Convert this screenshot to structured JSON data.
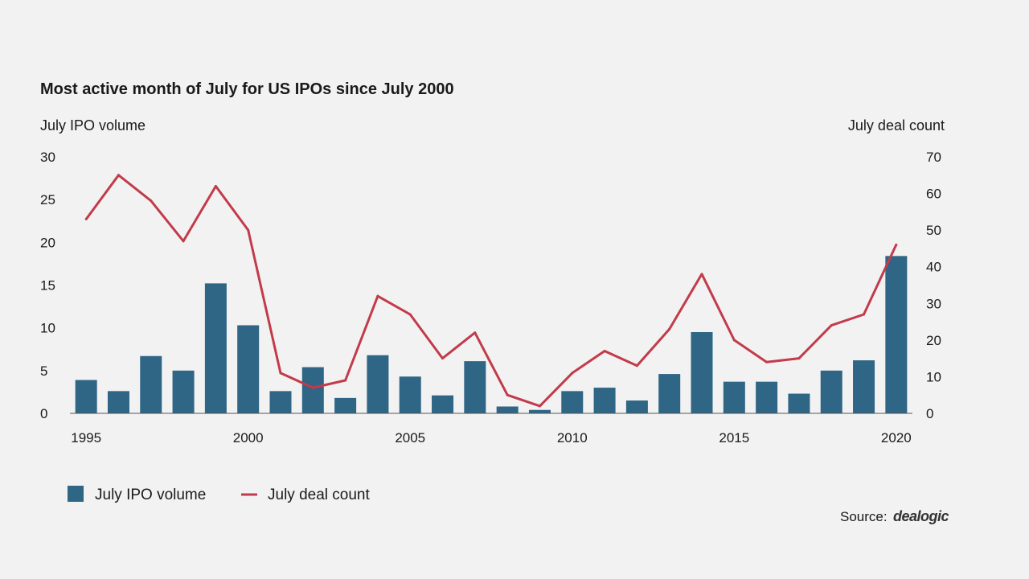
{
  "chart_data": {
    "type": "bar+line",
    "title": "Most active month of July for US IPOs since July 2000",
    "ylabel_left": "July IPO volume",
    "ylabel_right": "July deal count",
    "ylim_left": [
      0,
      30
    ],
    "yticks_left": [
      0,
      5,
      10,
      15,
      20,
      25,
      30
    ],
    "ylim_right": [
      0,
      70
    ],
    "yticks_right": [
      0,
      10,
      20,
      30,
      40,
      50,
      60,
      70
    ],
    "x": [
      1995,
      1996,
      1997,
      1998,
      1999,
      2000,
      2001,
      2002,
      2003,
      2004,
      2005,
      2006,
      2007,
      2008,
      2009,
      2010,
      2011,
      2012,
      2013,
      2014,
      2015,
      2016,
      2017,
      2018,
      2019,
      2020
    ],
    "xticks": [
      1995,
      2000,
      2005,
      2010,
      2015,
      2020
    ],
    "series": [
      {
        "name": "July IPO volume",
        "type": "bar",
        "color": "#2f6585",
        "values": [
          3.9,
          2.6,
          6.7,
          5.0,
          15.2,
          10.3,
          2.6,
          5.4,
          1.8,
          6.8,
          4.3,
          2.1,
          6.1,
          0.8,
          0.4,
          2.6,
          3.0,
          1.5,
          4.6,
          9.5,
          3.7,
          3.7,
          2.3,
          5.0,
          6.2,
          18.4
        ]
      },
      {
        "name": "July deal count",
        "type": "line",
        "color": "#c23b4a",
        "values": [
          53,
          65,
          58,
          47,
          62,
          50,
          11,
          7,
          9,
          32,
          27,
          15,
          22,
          5,
          2,
          11,
          17,
          13,
          23,
          38,
          20,
          14,
          15,
          24,
          27,
          46
        ]
      }
    ],
    "legend": [
      "July IPO volume",
      "July deal count"
    ],
    "legend_position": "bottom-left"
  },
  "source": {
    "label": "Source:",
    "brand": "dealogic"
  }
}
